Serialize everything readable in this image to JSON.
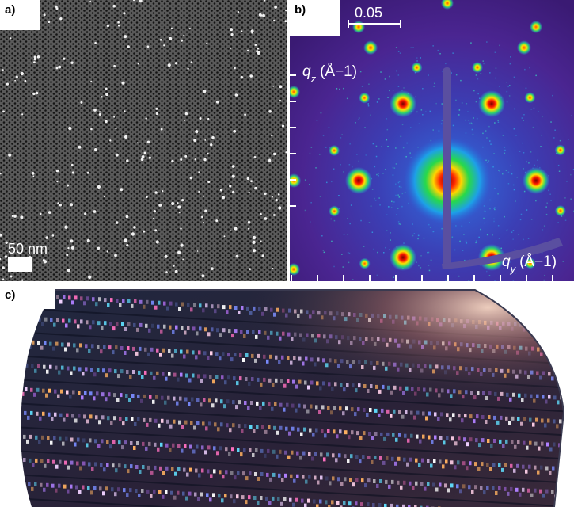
{
  "panels": {
    "a": {
      "label": "a)",
      "scalebar_text": "50 nm"
    },
    "b": {
      "label": "b)",
      "scalebar_text": "0.05",
      "qz_symbol": "q",
      "qz_sub": "z",
      "qz_unit": "(Å−1)",
      "qy_symbol": "q",
      "qy_sub": "y",
      "qy_unit": "(Å−1)"
    },
    "c": {
      "label": "c)"
    }
  },
  "colors": {
    "sem_background": "#2b2b2b",
    "saxs_background": "#3a1f7a",
    "wafer_dark": "#1b2236"
  }
}
